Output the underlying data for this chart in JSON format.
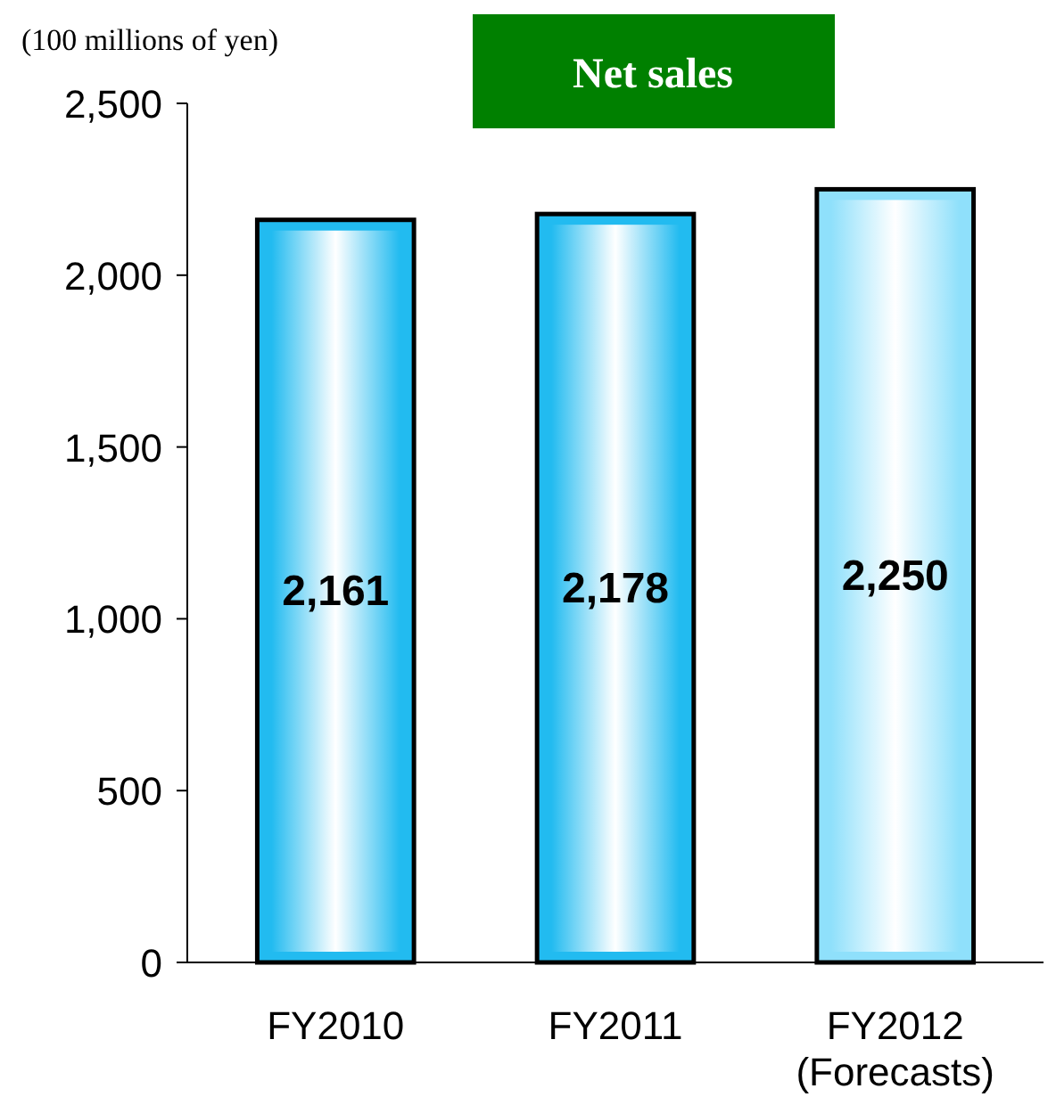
{
  "chart_data": {
    "type": "bar",
    "title": "Net sales",
    "ylabel": "(100 millions of yen)",
    "categories": [
      "FY2010",
      "FY2011",
      "FY2012\n(Forecasts)"
    ],
    "values": [
      2161,
      2178,
      2250
    ],
    "colors": [
      "#22bbf0",
      "#22bbf0",
      "#8fe0fb"
    ],
    "value_labels": [
      "2,161",
      "2,178",
      "2,250"
    ],
    "ylim": [
      0,
      2500
    ],
    "yticks": [
      0,
      500,
      {
        "value": 1000,
        "label": "1,000"
      },
      {
        "value": 1500,
        "label": "1,500"
      },
      {
        "value": 2000,
        "label": "2,000"
      },
      {
        "value": 2500,
        "label": "2,500"
      }
    ],
    "grid": false
  }
}
